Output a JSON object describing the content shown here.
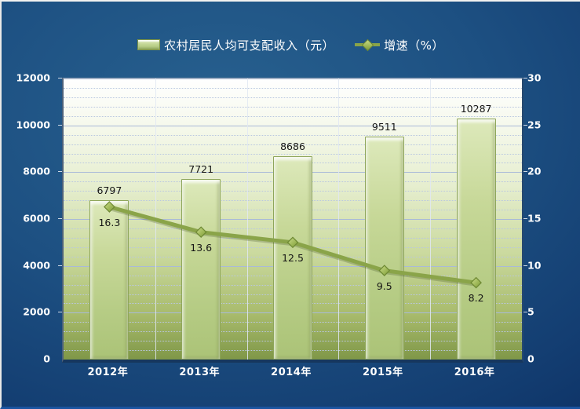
{
  "chart_data": {
    "type": "combo",
    "categories": [
      "2012年",
      "2013年",
      "2014年",
      "2015年",
      "2016年"
    ],
    "series": [
      {
        "name": "农村居民人均可支配收入（元）",
        "type": "bar",
        "axis": "left",
        "values": [
          6797,
          7721,
          8686,
          9511,
          10287
        ]
      },
      {
        "name": "增速（%）",
        "type": "line",
        "axis": "right",
        "values": [
          16.3,
          13.6,
          12.5,
          9.5,
          8.2
        ]
      }
    ],
    "left_axis": {
      "min": 0,
      "max": 12000,
      "step": 2000,
      "ticks": [
        "0",
        "2000",
        "4000",
        "6000",
        "8000",
        "10000",
        "12000"
      ]
    },
    "right_axis": {
      "min": 0,
      "max": 30,
      "step": 5,
      "ticks": [
        "0",
        "5",
        "10",
        "15",
        "20",
        "25",
        "30"
      ]
    },
    "grid": {
      "major": true,
      "minor": true,
      "minor_per_major": 5
    },
    "legend_position": "top",
    "colors": {
      "bar_fill": "#b6cc85",
      "bar_border": "#8ea65a",
      "line": "#8aa449",
      "marker_fill": "#9cb655",
      "marker_border": "#6d8833",
      "data_label": "#141414",
      "axis_text": "#ffffff",
      "background": "#1d5082"
    }
  }
}
